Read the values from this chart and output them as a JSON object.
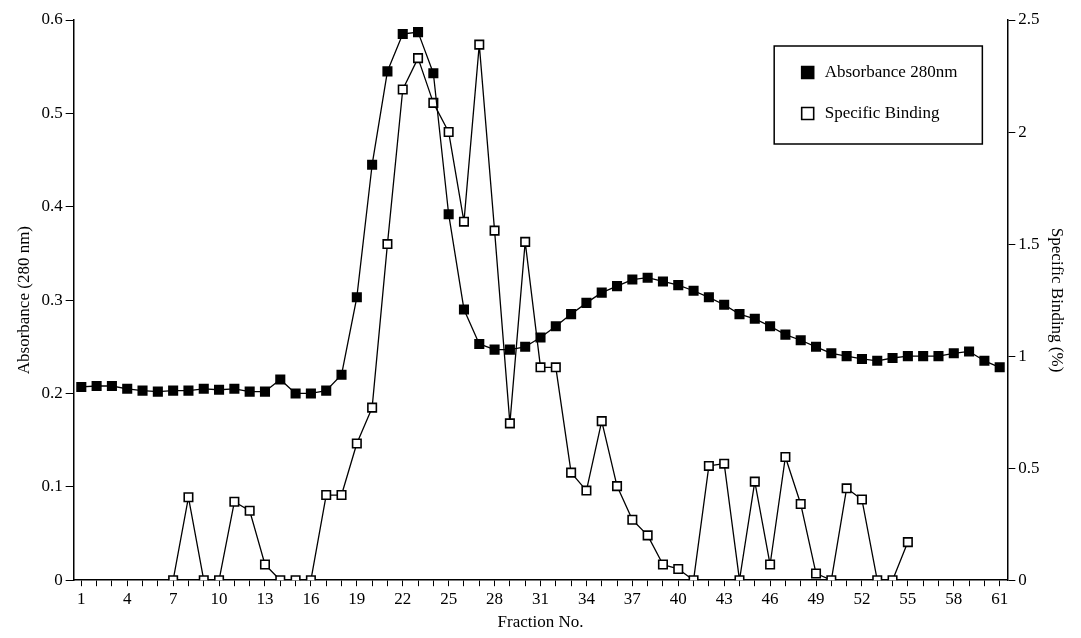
{
  "chart_data": {
    "type": "line",
    "xlabel": "Fraction No.",
    "ylabel": "Absorbance (280 nm)",
    "y2label": "Specific Binding (%)",
    "categories": [
      "1",
      null,
      null,
      "4",
      null,
      null,
      "7",
      null,
      null,
      "10",
      null,
      null,
      "13",
      null,
      null,
      "16",
      null,
      null,
      "19",
      null,
      null,
      "22",
      null,
      null,
      "25",
      null,
      null,
      "28",
      null,
      null,
      "31",
      null,
      null,
      "34",
      null,
      null,
      "37",
      null,
      null,
      "40",
      null,
      null,
      "43",
      null,
      null,
      "46",
      null,
      null,
      "49",
      null,
      null,
      "52",
      null,
      null,
      "55",
      null,
      null,
      "58",
      null,
      null,
      "61"
    ],
    "series": [
      {
        "name": "Absorbance 280nm",
        "color": "#000000",
        "values": [
          0.207,
          0.208,
          0.208,
          0.205,
          0.203,
          0.202,
          0.203,
          0.203,
          0.205,
          0.204,
          0.205,
          0.202,
          0.202,
          0.215,
          0.2,
          0.2,
          0.203,
          0.22,
          0.303,
          0.445,
          0.545,
          0.585,
          0.587,
          0.543,
          0.392,
          0.29,
          0.253,
          0.247,
          0.247,
          0.25,
          0.26,
          0.272,
          0.285,
          0.297,
          0.308,
          0.315,
          0.322,
          0.324,
          0.32,
          0.316,
          0.31,
          0.303,
          0.295,
          0.285,
          0.28,
          0.272,
          0.263,
          0.257,
          0.25,
          0.243,
          0.24,
          0.237,
          0.235,
          0.238,
          0.24,
          0.24,
          0.24,
          0.243,
          0.245,
          0.235,
          0.228
        ]
      },
      {
        "name": "Specific Binding",
        "color": "#000000",
        "axis": "y2",
        "values": [
          null,
          null,
          null,
          null,
          null,
          null,
          0,
          0.37,
          0,
          0,
          0.35,
          0.31,
          0.07,
          0,
          0,
          0,
          0.38,
          0.38,
          0.61,
          0.77,
          1.5,
          2.19,
          2.33,
          2.13,
          2.0,
          1.6,
          2.39,
          1.56,
          0.7,
          1.51,
          0.95,
          0.95,
          0.48,
          0.4,
          0.71,
          0.42,
          0.27,
          0.2,
          0.07,
          0.05,
          0,
          0.51,
          0.52,
          0,
          0.44,
          0.07,
          0.55,
          0.34,
          0.03,
          0,
          0.41,
          0.36,
          0,
          0,
          0.17,
          null,
          null,
          null,
          null,
          null,
          null
        ]
      }
    ],
    "ylim": [
      0,
      0.6
    ],
    "yticks": [
      0,
      0.1,
      0.2,
      0.3,
      0.4,
      0.5,
      0.6
    ],
    "y2lim": [
      0,
      2.5
    ],
    "y2ticks": [
      0,
      0.5,
      1,
      1.5,
      2,
      2.5
    ],
    "grid": false,
    "legend": "top right",
    "marker": "square",
    "line_style": "solid"
  }
}
